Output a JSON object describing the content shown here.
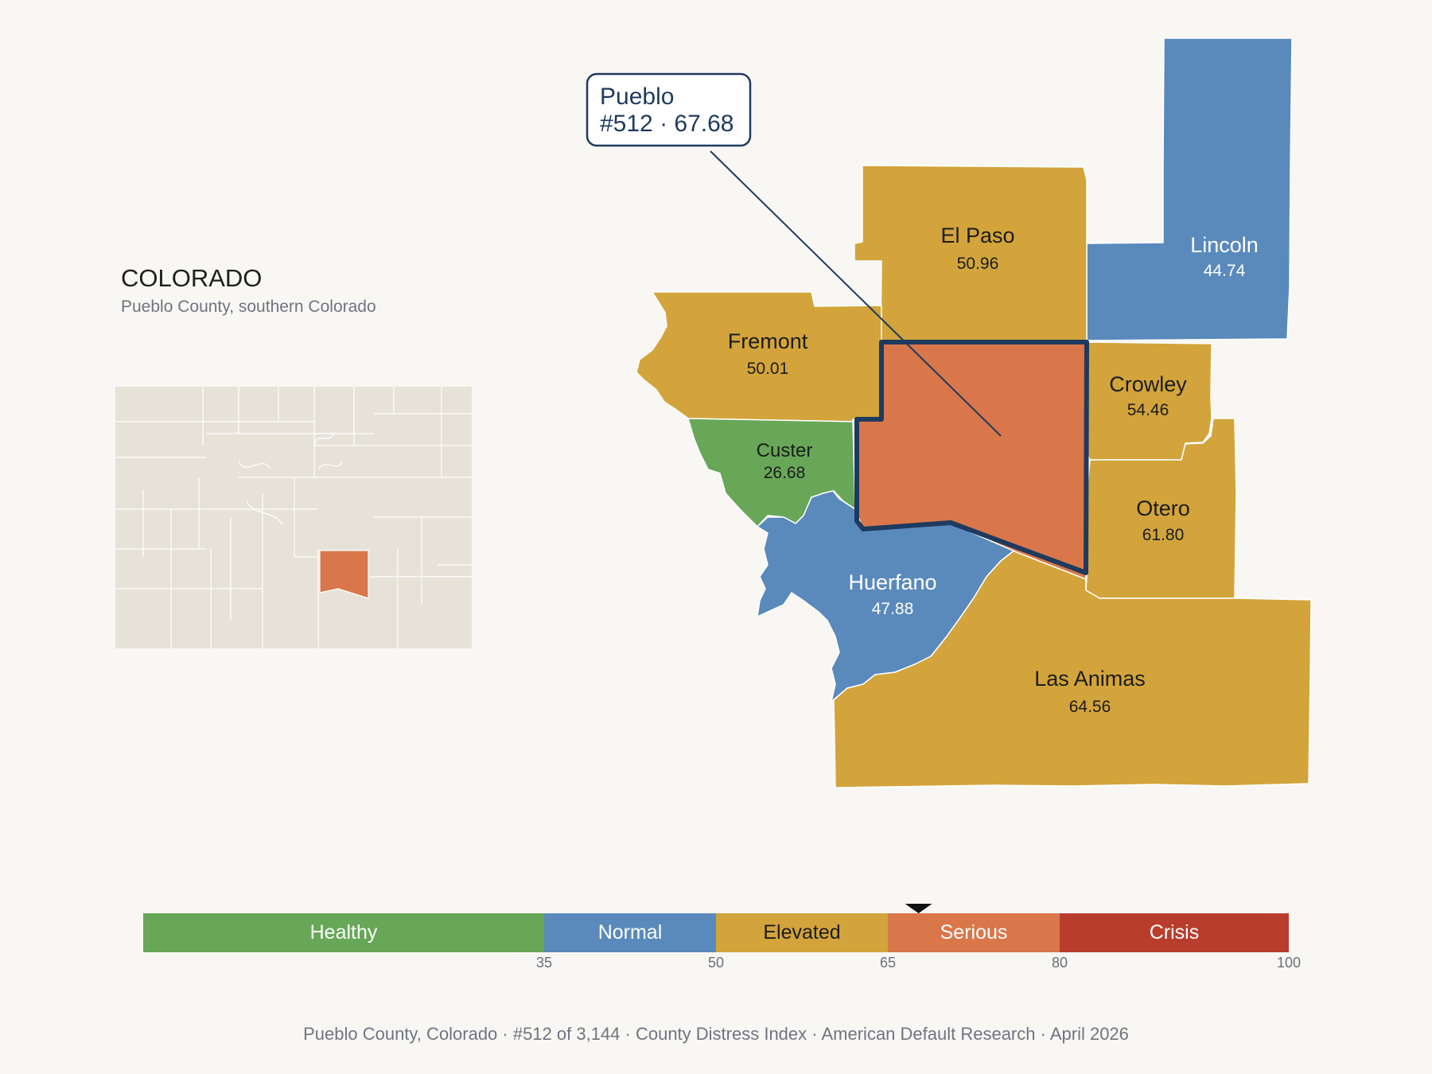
{
  "state": {
    "title": "COLORADO",
    "subtitle": "Pueblo County, southern Colorado"
  },
  "callout": {
    "line1": "Pueblo",
    "line2": "#512 · 67.68"
  },
  "counties": [
    {
      "id": "el-paso",
      "name": "El Paso",
      "value": "50.96",
      "band": "Elevated"
    },
    {
      "id": "lincoln",
      "name": "Lincoln",
      "value": "44.74",
      "band": "Normal"
    },
    {
      "id": "fremont",
      "name": "Fremont",
      "value": "50.01",
      "band": "Elevated"
    },
    {
      "id": "crowley",
      "name": "Crowley",
      "value": "54.46",
      "band": "Elevated"
    },
    {
      "id": "custer",
      "name": "Custer",
      "value": "26.68",
      "band": "Healthy"
    },
    {
      "id": "otero",
      "name": "Otero",
      "value": "61.80",
      "band": "Elevated"
    },
    {
      "id": "huerfano",
      "name": "Huerfano",
      "value": "47.88",
      "band": "Normal"
    },
    {
      "id": "las-animas",
      "name": "Las Animas",
      "value": "64.56",
      "band": "Elevated"
    },
    {
      "id": "pueblo",
      "name": "Pueblo",
      "value": "67.68",
      "band": "Serious",
      "highlight": true
    }
  ],
  "scale": {
    "bands": [
      {
        "label": "Healthy",
        "color": "#67a757"
      },
      {
        "label": "Normal",
        "color": "#5a8abc"
      },
      {
        "label": "Elevated",
        "color": "#d2a43b"
      },
      {
        "label": "Serious",
        "color": "#d9774a"
      },
      {
        "label": "Crisis",
        "color": "#b93d2d"
      }
    ],
    "ticks": [
      "35",
      "50",
      "65",
      "80",
      "100"
    ],
    "marker_value": 67.68
  },
  "colors": {
    "highlight_outline": "#1e3a5f",
    "inset_base": "#e7e2d8",
    "inset_highlight": "#d9774a"
  },
  "footer": "Pueblo County, Colorado  ·  #512 of 3,144  ·  County Distress Index  ·  American Default Research  ·  April 2026"
}
